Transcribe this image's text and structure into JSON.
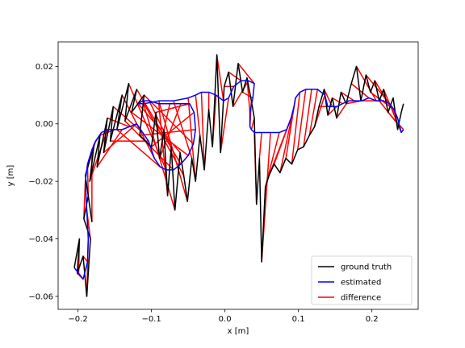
{
  "chart_data": {
    "type": "line",
    "title": "",
    "xlabel": "x [m]",
    "ylabel": "y [m]",
    "xlim": [
      -0.227,
      0.263
    ],
    "ylim": [
      -0.0645,
      0.0285
    ],
    "x_ticks": [
      -0.2,
      -0.1,
      0.0,
      0.1,
      0.2
    ],
    "x_tick_labels": [
      "−0.2",
      "−0.1",
      "0.0",
      "0.1",
      "0.2"
    ],
    "y_ticks": [
      -0.06,
      -0.04,
      -0.02,
      0.0,
      0.02
    ],
    "y_tick_labels": [
      "−0.06",
      "−0.04",
      "−0.02",
      "0.00",
      "0.02"
    ],
    "grid": false,
    "legend_position": "lower-right",
    "series": [
      {
        "name": "ground truth",
        "color": "#000000",
        "points": [
          [
            -0.205,
            -0.05
          ],
          [
            -0.198,
            -0.04
          ],
          [
            -0.201,
            -0.052
          ],
          [
            -0.193,
            -0.046
          ],
          [
            -0.188,
            -0.06
          ],
          [
            -0.183,
            -0.04
          ],
          [
            -0.192,
            -0.033
          ],
          [
            -0.186,
            -0.025
          ],
          [
            -0.181,
            -0.034
          ],
          [
            -0.19,
            -0.018
          ],
          [
            -0.178,
            -0.007
          ],
          [
            -0.184,
            -0.02
          ],
          [
            -0.17,
            -0.004
          ],
          [
            -0.174,
            -0.015
          ],
          [
            -0.16,
            0.002
          ],
          [
            -0.165,
            -0.01
          ],
          [
            -0.152,
            0.006
          ],
          [
            -0.156,
            -0.006
          ],
          [
            -0.14,
            0.01
          ],
          [
            -0.147,
            -0.002
          ],
          [
            -0.131,
            0.014
          ],
          [
            -0.136,
            0.001
          ],
          [
            -0.12,
            0.012
          ],
          [
            -0.127,
            0.004
          ],
          [
            -0.11,
            0.01
          ],
          [
            -0.116,
            -0.004
          ],
          [
            -0.1,
            -0.008
          ],
          [
            -0.094,
            0.004
          ],
          [
            -0.089,
            -0.012
          ],
          [
            -0.083,
            -0.002
          ],
          [
            -0.078,
            -0.025
          ],
          [
            -0.073,
            -0.008
          ],
          [
            -0.068,
            -0.03
          ],
          [
            -0.061,
            -0.01
          ],
          [
            -0.056,
            -0.018
          ],
          [
            -0.051,
            -0.027
          ],
          [
            -0.045,
            -0.012
          ],
          [
            -0.04,
            -0.02
          ],
          [
            -0.034,
            -0.004
          ],
          [
            -0.028,
            -0.016
          ],
          [
            -0.022,
            0.005
          ],
          [
            -0.017,
            -0.008
          ],
          [
            -0.011,
            0.024
          ],
          [
            -0.006,
            -0.01
          ],
          [
            -0.001,
            0.013
          ],
          [
            0.005,
            0.018
          ],
          [
            0.011,
            0.006
          ],
          [
            0.018,
            0.021
          ],
          [
            0.024,
            0.011
          ],
          [
            0.03,
            0.016
          ],
          [
            0.036,
            0.008
          ],
          [
            0.04,
            0.002
          ],
          [
            0.043,
            -0.028
          ],
          [
            0.047,
            -0.012
          ],
          [
            0.05,
            -0.048
          ],
          [
            0.055,
            -0.022
          ],
          [
            0.06,
            -0.018
          ],
          [
            0.067,
            -0.014
          ],
          [
            0.075,
            -0.017
          ],
          [
            0.083,
            -0.012
          ],
          [
            0.091,
            -0.014
          ],
          [
            0.099,
            -0.009
          ],
          [
            0.107,
            -0.008
          ],
          [
            0.115,
            -0.004
          ],
          [
            0.122,
            -0.001
          ],
          [
            0.128,
            0.006
          ],
          [
            0.135,
            0.012
          ],
          [
            0.14,
            0.003
          ],
          [
            0.146,
            0.009
          ],
          [
            0.152,
            0.002
          ],
          [
            0.158,
            0.011
          ],
          [
            0.165,
            0.007
          ],
          [
            0.172,
            0.014
          ],
          [
            0.179,
            0.02
          ],
          [
            0.185,
            0.008
          ],
          [
            0.192,
            0.017
          ],
          [
            0.198,
            0.011
          ],
          [
            0.204,
            0.015
          ],
          [
            0.21,
            0.008
          ],
          [
            0.216,
            0.012
          ],
          [
            0.222,
            0.004
          ],
          [
            0.229,
            0.009
          ],
          [
            0.235,
            -0.002
          ],
          [
            0.24,
            0.004
          ],
          [
            0.243,
            0.007
          ]
        ]
      },
      {
        "name": "estimated",
        "color": "#0000ff",
        "points": [
          [
            -0.205,
            -0.05
          ],
          [
            -0.199,
            -0.052
          ],
          [
            -0.193,
            -0.054
          ],
          [
            -0.187,
            -0.048
          ],
          [
            -0.186,
            -0.04
          ],
          [
            -0.188,
            -0.03
          ],
          [
            -0.19,
            -0.02
          ],
          [
            -0.187,
            -0.014
          ],
          [
            -0.181,
            -0.009
          ],
          [
            -0.176,
            -0.006
          ],
          [
            -0.168,
            -0.003
          ],
          [
            -0.16,
            -0.002
          ],
          [
            -0.15,
            -0.002
          ],
          [
            -0.14,
            -0.002
          ],
          [
            -0.13,
            -0.001
          ],
          [
            -0.12,
            0.0
          ],
          [
            -0.112,
            -0.003
          ],
          [
            -0.104,
            -0.006
          ],
          [
            -0.096,
            -0.012
          ],
          [
            -0.088,
            -0.015
          ],
          [
            -0.08,
            -0.016
          ],
          [
            -0.07,
            -0.016
          ],
          [
            -0.06,
            -0.014
          ],
          [
            -0.05,
            -0.011
          ],
          [
            -0.043,
            -0.007
          ],
          [
            -0.04,
            -0.002
          ],
          [
            -0.042,
            0.004
          ],
          [
            -0.048,
            0.007
          ],
          [
            -0.06,
            0.007
          ],
          [
            -0.075,
            0.007
          ],
          [
            -0.09,
            0.007
          ],
          [
            -0.103,
            0.008
          ],
          [
            -0.112,
            0.008
          ],
          [
            -0.118,
            0.007
          ],
          [
            -0.11,
            0.007
          ],
          [
            -0.09,
            0.008
          ],
          [
            -0.07,
            0.008
          ],
          [
            -0.05,
            0.009
          ],
          [
            -0.04,
            0.01
          ],
          [
            -0.032,
            0.011
          ],
          [
            -0.022,
            0.011
          ],
          [
            -0.012,
            0.01
          ],
          [
            -0.002,
            0.008
          ],
          [
            0.005,
            0.009
          ],
          [
            0.012,
            0.013
          ],
          [
            0.022,
            0.015
          ],
          [
            0.032,
            0.015
          ],
          [
            0.04,
            0.014
          ],
          [
            0.038,
            0.009
          ],
          [
            0.034,
            0.004
          ],
          [
            0.034,
            -0.001
          ],
          [
            0.036,
            -0.002
          ],
          [
            0.04,
            -0.003
          ],
          [
            0.05,
            -0.003
          ],
          [
            0.062,
            -0.003
          ],
          [
            0.074,
            -0.003
          ],
          [
            0.084,
            -0.002
          ],
          [
            0.09,
            0.002
          ],
          [
            0.094,
            0.006
          ],
          [
            0.096,
            0.009
          ],
          [
            0.102,
            0.011
          ],
          [
            0.11,
            0.012
          ],
          [
            0.118,
            0.012
          ],
          [
            0.126,
            0.012
          ],
          [
            0.136,
            0.01
          ],
          [
            0.14,
            0.006
          ],
          [
            0.146,
            0.006
          ],
          [
            0.152,
            0.006
          ],
          [
            0.16,
            0.007
          ],
          [
            0.168,
            0.008
          ],
          [
            0.176,
            0.008
          ],
          [
            0.186,
            0.008
          ],
          [
            0.196,
            0.009
          ],
          [
            0.206,
            0.008
          ],
          [
            0.216,
            0.008
          ],
          [
            0.224,
            0.007
          ],
          [
            0.23,
            0.005
          ],
          [
            0.235,
            0.002
          ],
          [
            0.238,
            -0.001
          ],
          [
            0.24,
            -0.003
          ],
          [
            0.243,
            -0.002
          ]
        ]
      },
      {
        "name": "difference",
        "color": "#ff0000"
      }
    ]
  }
}
